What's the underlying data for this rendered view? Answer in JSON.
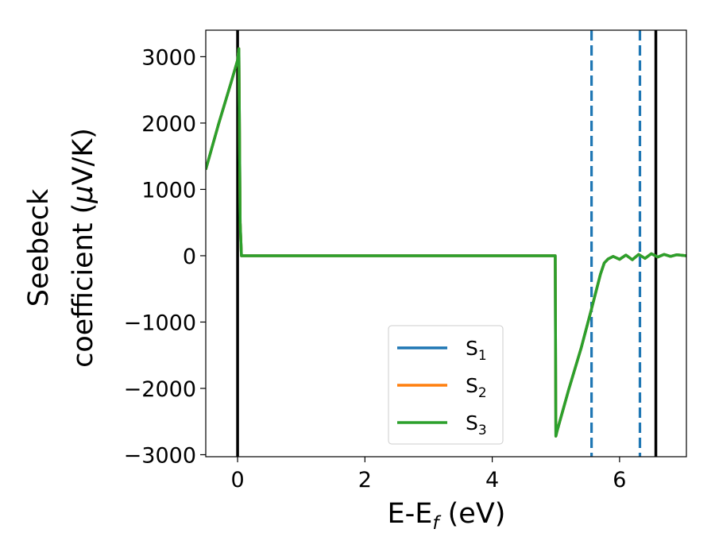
{
  "chart_data": {
    "type": "line",
    "title": "",
    "xlabel": "E-E",
    "xlabel_sub": "f",
    "xlabel_unit": " (eV)",
    "ylabel_line1": "Seebeck",
    "ylabel_line2_pre": "coefficient  (",
    "ylabel_line2_mu": "μ",
    "ylabel_line2_post": "V/K)",
    "xlim": [
      -0.5,
      7.05
    ],
    "ylim": [
      -3030,
      3400
    ],
    "xticks": [
      0,
      2,
      4,
      6
    ],
    "xtick_labels": [
      "0",
      "2",
      "4",
      "6"
    ],
    "yticks": [
      -3000,
      -2000,
      -1000,
      0,
      1000,
      2000,
      3000
    ],
    "ytick_labels": [
      "−3000",
      "−2000",
      "−1000",
      "0",
      "1000",
      "2000",
      "3000"
    ],
    "grid": false,
    "legend_position": "lower-center",
    "series": [
      {
        "name": "S",
        "sub": "1",
        "color": "#1f77b4",
        "x": [
          -0.5,
          -0.3,
          -0.1,
          0.0,
          0.02,
          0.04,
          0.06,
          0.5,
          2.0,
          4.0,
          4.99,
          5.0,
          5.02,
          5.2,
          5.4,
          5.56,
          5.7,
          5.76,
          5.82,
          5.9,
          6.0,
          6.1,
          6.2,
          6.3,
          6.4,
          6.5,
          6.6,
          6.7,
          6.8,
          6.9,
          7.05
        ],
        "y": [
          1300,
          1980,
          2620,
          2950,
          3120,
          500,
          0,
          0,
          0,
          0,
          0,
          -2720,
          -2640,
          -2020,
          -1380,
          -800,
          -280,
          -110,
          -50,
          -10,
          -55,
          10,
          -60,
          20,
          -40,
          30,
          -20,
          20,
          -10,
          15,
          0
        ]
      },
      {
        "name": "S",
        "sub": "2",
        "color": "#ff7f0e",
        "x": [
          -0.5,
          -0.3,
          -0.1,
          0.0,
          0.02,
          0.04,
          0.06,
          0.5,
          2.0,
          4.0,
          4.99,
          5.0,
          5.02,
          5.2,
          5.4,
          5.56,
          5.7,
          5.76,
          5.82,
          5.9,
          6.0,
          6.1,
          6.2,
          6.3,
          6.4,
          6.5,
          6.6,
          6.7,
          6.8,
          6.9,
          7.05
        ],
        "y": [
          1300,
          1980,
          2620,
          2950,
          3120,
          500,
          0,
          0,
          0,
          0,
          0,
          -2720,
          -2640,
          -2020,
          -1380,
          -800,
          -280,
          -110,
          -50,
          -10,
          -55,
          10,
          -60,
          20,
          -40,
          30,
          -20,
          20,
          -10,
          15,
          0
        ]
      },
      {
        "name": "S",
        "sub": "3",
        "color": "#2ca02c",
        "x": [
          -0.5,
          -0.3,
          -0.1,
          0.0,
          0.02,
          0.04,
          0.06,
          0.5,
          2.0,
          4.0,
          4.99,
          5.0,
          5.02,
          5.2,
          5.4,
          5.56,
          5.7,
          5.76,
          5.82,
          5.9,
          6.0,
          6.1,
          6.2,
          6.3,
          6.4,
          6.5,
          6.6,
          6.7,
          6.8,
          6.9,
          7.05
        ],
        "y": [
          1300,
          1980,
          2620,
          2950,
          3120,
          500,
          0,
          0,
          0,
          0,
          0,
          -2720,
          -2640,
          -2020,
          -1380,
          -800,
          -280,
          -110,
          -50,
          -10,
          -55,
          10,
          -60,
          20,
          -40,
          30,
          -20,
          20,
          -10,
          15,
          0
        ]
      }
    ],
    "vertical_lines": [
      {
        "x": 0.0,
        "color": "#000000",
        "style": "solid"
      },
      {
        "x": 6.57,
        "color": "#000000",
        "style": "solid"
      },
      {
        "x": 5.56,
        "color": "#1f77b4",
        "style": "dashed"
      },
      {
        "x": 6.32,
        "color": "#1f77b4",
        "style": "dashed"
      }
    ]
  }
}
